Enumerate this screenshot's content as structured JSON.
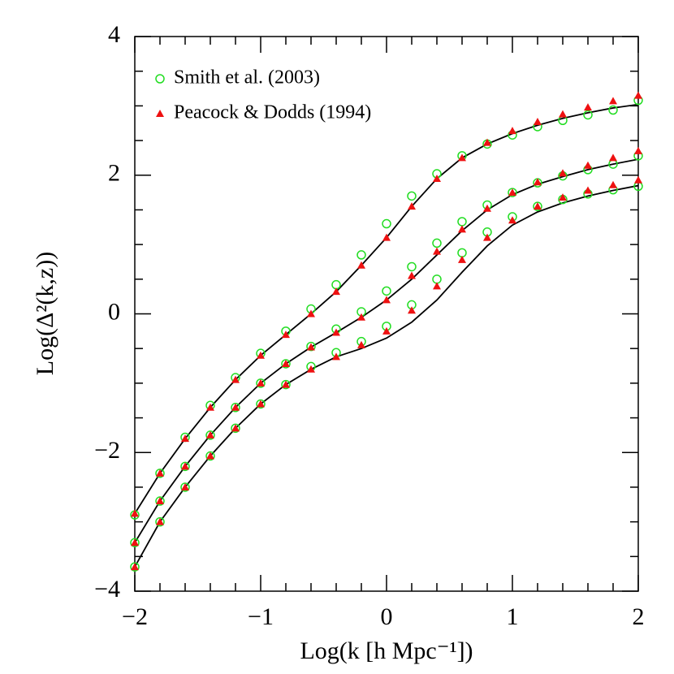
{
  "chart_data": {
    "type": "line",
    "xlabel": "Log(k [h Mpc⁻¹])",
    "ylabel": "Log(Δ²(k,z))",
    "x": [
      -2,
      -1.8,
      -1.6,
      -1.4,
      -1.2,
      -1,
      -0.8,
      -0.6,
      -0.4,
      -0.2,
      0,
      0.2,
      0.4,
      0.6,
      0.8,
      1,
      1.2,
      1.4,
      1.6,
      1.8,
      2
    ],
    "xlim": [
      -2,
      2
    ],
    "ylim": [
      -4,
      4
    ],
    "xticks": [
      {
        "value": -2,
        "label": "−2"
      },
      {
        "value": -1,
        "label": "−1"
      },
      0,
      1,
      2
    ],
    "yticks": [
      {
        "value": -4,
        "label": "−4"
      },
      {
        "value": -2,
        "label": "−2"
      },
      0,
      2,
      4
    ],
    "x_minor_ticks": [
      -1.8,
      -1.6,
      -1.4,
      -1.2,
      -0.8,
      -0.6,
      -0.4,
      -0.2,
      0.2,
      0.4,
      0.6,
      0.8,
      1.2,
      1.4,
      1.6,
      1.8
    ],
    "y_minor_ticks": [
      -3.5,
      -3,
      -2.5,
      -1.5,
      -1,
      -0.5,
      0.5,
      1,
      1.5,
      2.5,
      3,
      3.5
    ],
    "legend": "upper left",
    "series": [
      {
        "marker": "line",
        "color": "#000000",
        "values": [
          -2.88,
          -2.3,
          -1.8,
          -1.35,
          -0.95,
          -0.6,
          -0.3,
          0.0,
          0.32,
          0.7,
          1.1,
          1.55,
          1.95,
          2.25,
          2.45,
          2.6,
          2.72,
          2.82,
          2.9,
          2.97,
          3.02
        ]
      },
      {
        "marker": "line",
        "color": "#000000",
        "values": [
          -3.3,
          -2.7,
          -2.2,
          -1.75,
          -1.35,
          -1.0,
          -0.72,
          -0.48,
          -0.27,
          -0.05,
          0.2,
          0.5,
          0.85,
          1.2,
          1.5,
          1.72,
          1.87,
          1.98,
          2.08,
          2.16,
          2.23
        ]
      },
      {
        "marker": "line",
        "color": "#000000",
        "values": [
          -3.65,
          -3.0,
          -2.5,
          -2.05,
          -1.65,
          -1.3,
          -1.02,
          -0.8,
          -0.62,
          -0.5,
          -0.35,
          -0.12,
          0.2,
          0.6,
          0.98,
          1.28,
          1.47,
          1.6,
          1.7,
          1.78,
          1.85
        ]
      },
      {
        "name": "Smith et al. (2003)",
        "marker": "circle",
        "color": "#22dd22",
        "values": [
          -2.9,
          -2.3,
          -1.78,
          -1.32,
          -0.92,
          -0.57,
          -0.25,
          0.07,
          0.42,
          0.85,
          1.3,
          1.7,
          2.02,
          2.28,
          2.45,
          2.58,
          2.7,
          2.79,
          2.87,
          2.94,
          3.08
        ]
      },
      {
        "name": "Peacock & Dodds (1994)",
        "marker": "triangle",
        "color": "#ee1111",
        "values": [
          -2.88,
          -2.3,
          -1.8,
          -1.35,
          -0.95,
          -0.6,
          -0.3,
          0.0,
          0.32,
          0.7,
          1.1,
          1.55,
          1.95,
          2.25,
          2.47,
          2.64,
          2.77,
          2.88,
          2.98,
          3.07,
          3.15
        ]
      },
      {
        "marker": "circle",
        "color": "#22dd22",
        "values": [
          -3.3,
          -2.7,
          -2.2,
          -1.75,
          -1.35,
          -1.0,
          -0.72,
          -0.47,
          -0.22,
          0.03,
          0.33,
          0.68,
          1.02,
          1.33,
          1.57,
          1.75,
          1.89,
          1.99,
          2.08,
          2.16,
          2.28
        ]
      },
      {
        "marker": "triangle",
        "color": "#ee1111",
        "values": [
          -3.3,
          -2.7,
          -2.2,
          -1.75,
          -1.35,
          -1.0,
          -0.72,
          -0.48,
          -0.27,
          -0.05,
          0.2,
          0.55,
          0.9,
          1.22,
          1.52,
          1.75,
          1.9,
          2.03,
          2.14,
          2.25,
          2.35
        ]
      },
      {
        "marker": "circle",
        "color": "#22dd22",
        "values": [
          -3.65,
          -3.0,
          -2.5,
          -2.05,
          -1.65,
          -1.3,
          -1.02,
          -0.76,
          -0.56,
          -0.4,
          -0.18,
          0.13,
          0.5,
          0.88,
          1.18,
          1.4,
          1.55,
          1.65,
          1.73,
          1.79,
          1.84
        ]
      },
      {
        "marker": "triangle",
        "color": "#ee1111",
        "values": [
          -3.65,
          -3.0,
          -2.5,
          -2.05,
          -1.65,
          -1.3,
          -1.02,
          -0.8,
          -0.62,
          -0.45,
          -0.25,
          0.05,
          0.4,
          0.78,
          1.1,
          1.35,
          1.55,
          1.68,
          1.78,
          1.86,
          1.93
        ]
      }
    ]
  }
}
